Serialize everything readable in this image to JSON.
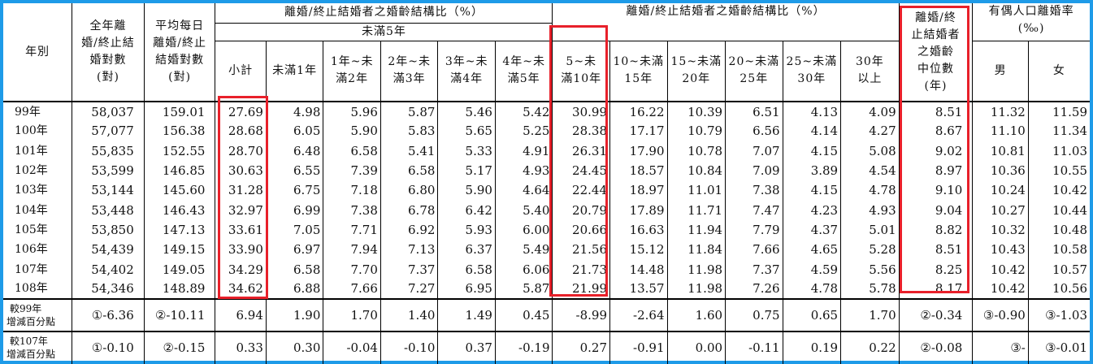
{
  "headers": {
    "year": "年別",
    "total": [
      "全年離",
      "婚/終止結",
      "婚對數",
      "(對)"
    ],
    "daily": [
      "平均每日",
      "離婚/終止",
      "結婚對數",
      "(對)"
    ],
    "group1_title": "離婚/終止結婚者之婚齡結構比（%）",
    "group2_title": "離婚/終止結婚者之婚齡結構比（%）",
    "under5_title": "未滿5年",
    "cols": {
      "subtotal": "小計",
      "lt1": "未滿1年",
      "y1_2": [
        "1年~未",
        "滿2年"
      ],
      "y2_3": [
        "2年~未",
        "滿3年"
      ],
      "y3_4": [
        "3年~未",
        "滿4年"
      ],
      "y4_5": [
        "4年~未",
        "滿5年"
      ],
      "y5_10": [
        "5~未",
        "滿10年"
      ],
      "y10_15": [
        "10~未滿",
        "15年"
      ],
      "y15_20": [
        "15~未滿",
        "20年"
      ],
      "y20_25": [
        "20~未滿",
        "25年"
      ],
      "y25_30": [
        "25~未滿",
        "30年"
      ],
      "y30p": [
        "30年",
        "以上"
      ]
    },
    "median": [
      "離婚/終",
      "止結婚者",
      "之婚齡",
      "中位數",
      "(年)"
    ],
    "rate_title": [
      "有偶人口離婚率",
      "(‰)"
    ],
    "male": "男",
    "female": "女"
  },
  "rows": [
    {
      "year": "99年",
      "v": [
        "58,037",
        "159.01",
        "27.69",
        "4.98",
        "5.96",
        "5.87",
        "5.46",
        "5.42",
        "30.99",
        "16.22",
        "10.39",
        "6.51",
        "4.13",
        "4.09",
        "8.51",
        "11.32",
        "11.59"
      ]
    },
    {
      "year": "100年",
      "v": [
        "57,077",
        "156.38",
        "28.68",
        "6.05",
        "5.90",
        "5.83",
        "5.65",
        "5.25",
        "28.38",
        "17.17",
        "10.79",
        "6.56",
        "4.14",
        "4.27",
        "8.67",
        "11.10",
        "11.34"
      ]
    },
    {
      "year": "101年",
      "v": [
        "55,835",
        "152.55",
        "28.70",
        "6.48",
        "6.58",
        "5.41",
        "5.33",
        "4.91",
        "26.31",
        "17.90",
        "10.78",
        "7.07",
        "4.15",
        "5.08",
        "9.02",
        "10.81",
        "11.03"
      ]
    },
    {
      "year": "102年",
      "v": [
        "53,599",
        "146.85",
        "30.63",
        "6.55",
        "7.39",
        "6.58",
        "5.17",
        "4.93",
        "24.45",
        "18.57",
        "10.84",
        "7.09",
        "3.89",
        "4.54",
        "8.97",
        "10.36",
        "10.55"
      ]
    },
    {
      "year": "103年",
      "v": [
        "53,144",
        "145.60",
        "31.28",
        "6.75",
        "7.18",
        "6.80",
        "5.90",
        "4.64",
        "22.44",
        "18.97",
        "11.01",
        "7.38",
        "4.15",
        "4.78",
        "9.10",
        "10.24",
        "10.42"
      ]
    },
    {
      "year": "104年",
      "v": [
        "53,448",
        "146.43",
        "32.97",
        "6.99",
        "7.38",
        "6.78",
        "6.42",
        "5.40",
        "20.79",
        "17.89",
        "11.71",
        "7.47",
        "4.23",
        "4.93",
        "9.04",
        "10.27",
        "10.44"
      ]
    },
    {
      "year": "105年",
      "v": [
        "53,850",
        "147.13",
        "33.61",
        "7.05",
        "7.71",
        "6.92",
        "5.93",
        "6.00",
        "20.66",
        "16.63",
        "11.94",
        "7.79",
        "4.37",
        "5.01",
        "8.82",
        "10.32",
        "10.48"
      ]
    },
    {
      "year": "106年",
      "v": [
        "54,439",
        "149.15",
        "33.90",
        "6.97",
        "7.94",
        "7.13",
        "6.37",
        "5.49",
        "21.56",
        "15.12",
        "11.84",
        "7.66",
        "4.65",
        "5.28",
        "8.51",
        "10.43",
        "10.58"
      ]
    },
    {
      "year": "107年",
      "v": [
        "54,402",
        "149.05",
        "34.29",
        "6.58",
        "7.70",
        "7.37",
        "6.58",
        "6.06",
        "21.73",
        "14.48",
        "11.98",
        "7.37",
        "4.59",
        "5.56",
        "8.25",
        "10.42",
        "10.57"
      ]
    },
    {
      "year": "108年",
      "v": [
        "54,346",
        "148.89",
        "34.62",
        "6.88",
        "7.66",
        "7.27",
        "6.95",
        "5.87",
        "21.99",
        "13.57",
        "11.98",
        "7.26",
        "4.78",
        "5.78",
        "8.17",
        "10.42",
        "10.56"
      ]
    }
  ],
  "compare": [
    {
      "label": [
        "較99年",
        "增減百分點"
      ],
      "v": [
        "①-6.36",
        "②-10.11",
        "6.94",
        "1.90",
        "1.70",
        "1.40",
        "1.49",
        "0.45",
        "-8.99",
        "-2.64",
        "1.60",
        "0.75",
        "0.65",
        "1.70",
        "②-0.34",
        "③-0.90",
        "③-1.03"
      ]
    },
    {
      "label": [
        "較107年",
        "增減百分點"
      ],
      "v": [
        "①-0.10",
        "②-0.15",
        "0.33",
        "0.30",
        "-0.04",
        "-0.10",
        "0.37",
        "-0.19",
        "0.27",
        "-0.91",
        "0.00",
        "-0.11",
        "0.19",
        "0.22",
        "②-0.08",
        "③-",
        "③-0.01"
      ]
    }
  ],
  "colors": {
    "frame": "#1e9be8",
    "highlight": "#e8202a"
  }
}
